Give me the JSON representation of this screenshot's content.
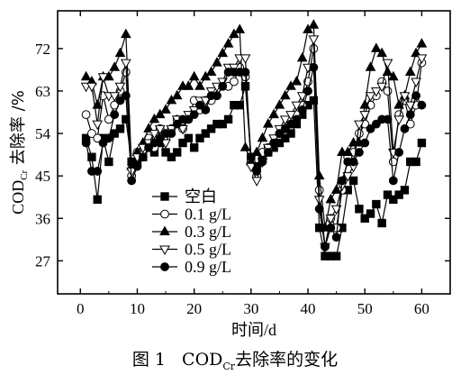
{
  "chart_data": {
    "type": "line",
    "title": "",
    "xlabel": "时间/d",
    "ylabel": {
      "main": "COD",
      "sub": "Cr",
      "rest": " 去除率 /%"
    },
    "xlim": [
      -4,
      65
    ],
    "ylim": [
      20,
      80
    ],
    "xticks": [
      "0",
      "10",
      "20",
      "30",
      "40",
      "50",
      "60"
    ],
    "yticks": [
      "27",
      "36",
      "45",
      "54",
      "63",
      "72"
    ],
    "legend_position": "bottom-center",
    "series": [
      {
        "name": "空白",
        "marker": "square",
        "fill": "#000",
        "x": [
          1,
          2,
          3,
          4,
          5,
          6,
          7,
          8,
          9,
          10,
          11,
          12,
          13,
          14,
          15,
          16,
          17,
          18,
          19,
          20,
          21,
          22,
          23,
          24,
          25,
          26,
          27,
          28,
          29,
          30,
          31,
          32,
          33,
          34,
          35,
          36,
          37,
          38,
          39,
          40,
          41,
          42,
          43,
          44,
          45,
          46,
          47,
          48,
          49,
          50,
          51,
          52,
          53,
          54,
          55,
          56,
          57,
          58,
          59,
          60
        ],
        "values": [
          53,
          49,
          40,
          53,
          48,
          54,
          55,
          57,
          48,
          48,
          49,
          51,
          50,
          52,
          50,
          49,
          50,
          52,
          53,
          51,
          53,
          54,
          55,
          56,
          56,
          57,
          60,
          60,
          64,
          49,
          47,
          49,
          50,
          51,
          52,
          53,
          54,
          56,
          58,
          60,
          61,
          34,
          28,
          28,
          28,
          34,
          42,
          44,
          38,
          36,
          37,
          39,
          35,
          41,
          40,
          41,
          42,
          48,
          48,
          52
        ]
      },
      {
        "name": "0.1 g/L",
        "marker": "circle",
        "fill": "#fff",
        "x": [
          1,
          2,
          3,
          4,
          5,
          6,
          7,
          8,
          9,
          10,
          11,
          12,
          13,
          14,
          15,
          16,
          17,
          18,
          19,
          20,
          21,
          22,
          23,
          24,
          25,
          26,
          27,
          28,
          29,
          30,
          31,
          32,
          33,
          34,
          35,
          36,
          37,
          38,
          39,
          40,
          41,
          42,
          43,
          44,
          45,
          46,
          47,
          48,
          49,
          50,
          51,
          52,
          53,
          54,
          55,
          56,
          57,
          58,
          59,
          60
        ],
        "values": [
          58,
          54,
          53,
          62,
          57,
          60,
          63,
          67,
          45,
          50,
          50,
          53,
          51,
          55,
          53,
          55,
          57,
          55,
          57,
          61,
          59,
          61,
          61,
          62,
          64,
          64,
          65,
          68,
          66,
          48,
          45,
          50,
          51,
          52,
          54,
          55,
          56,
          58,
          60,
          65,
          72,
          42,
          30,
          36,
          34,
          42,
          49,
          50,
          54,
          56,
          60,
          62,
          65,
          63,
          48,
          58,
          61,
          56,
          60,
          69
        ]
      },
      {
        "name": "0.3 g/L",
        "marker": "triangle-up",
        "fill": "#000",
        "x": [
          1,
          2,
          3,
          4,
          5,
          6,
          7,
          8,
          9,
          10,
          11,
          12,
          13,
          14,
          15,
          16,
          17,
          18,
          19,
          20,
          21,
          22,
          23,
          24,
          25,
          26,
          27,
          28,
          29,
          30,
          31,
          32,
          33,
          34,
          35,
          36,
          37,
          38,
          39,
          40,
          41,
          42,
          43,
          44,
          45,
          46,
          47,
          48,
          49,
          50,
          51,
          52,
          53,
          54,
          55,
          56,
          57,
          58,
          59,
          60
        ],
        "values": [
          66,
          65,
          60,
          66,
          66,
          68,
          71,
          75,
          47,
          50,
          52,
          55,
          57,
          58,
          59,
          61,
          62,
          64,
          64,
          66,
          64,
          66,
          67,
          69,
          71,
          73,
          75,
          76,
          51,
          48,
          50,
          53,
          56,
          58,
          60,
          62,
          64,
          65,
          70,
          76,
          77,
          45,
          34,
          40,
          42,
          50,
          50,
          52,
          52,
          60,
          68,
          72,
          71,
          67,
          66,
          60,
          62,
          67,
          71,
          73
        ]
      },
      {
        "name": "0.5 g/L",
        "marker": "triangle-down",
        "fill": "#fff",
        "x": [
          1,
          2,
          3,
          4,
          5,
          6,
          7,
          8,
          9,
          10,
          11,
          12,
          13,
          14,
          15,
          16,
          17,
          18,
          19,
          20,
          21,
          22,
          23,
          24,
          25,
          26,
          27,
          28,
          29,
          30,
          31,
          32,
          33,
          34,
          35,
          36,
          37,
          38,
          39,
          40,
          41,
          42,
          43,
          44,
          45,
          46,
          47,
          48,
          49,
          50,
          51,
          52,
          53,
          54,
          55,
          56,
          57,
          58,
          59,
          60
        ],
        "values": [
          64,
          64,
          56,
          66,
          62,
          62,
          64,
          69,
          46,
          49,
          51,
          52,
          54,
          55,
          52,
          55,
          57,
          55,
          58,
          59,
          61,
          61,
          63,
          64,
          65,
          68,
          68,
          70,
          70,
          47,
          44,
          48,
          51,
          53,
          55,
          57,
          58,
          60,
          62,
          68,
          74,
          40,
          30,
          36,
          38,
          43,
          45,
          47,
          56,
          58,
          62,
          63,
          64,
          69,
          50,
          57,
          62,
          60,
          65,
          70
        ]
      },
      {
        "name": "0.9 g/L",
        "marker": "circle",
        "fill": "#000",
        "x": [
          1,
          2,
          3,
          4,
          5,
          6,
          7,
          8,
          9,
          10,
          11,
          12,
          13,
          14,
          15,
          16,
          17,
          18,
          19,
          20,
          21,
          22,
          23,
          24,
          25,
          26,
          27,
          28,
          29,
          30,
          31,
          32,
          33,
          34,
          35,
          36,
          37,
          38,
          39,
          40,
          41,
          42,
          43,
          44,
          45,
          46,
          47,
          48,
          49,
          50,
          51,
          52,
          53,
          54,
          55,
          56,
          57,
          58,
          59,
          60
        ],
        "values": [
          52,
          46,
          46,
          52,
          53,
          58,
          61,
          62,
          44,
          47,
          49,
          51,
          52,
          53,
          54,
          54,
          56,
          57,
          57,
          58,
          60,
          59,
          62,
          62,
          64,
          67,
          67,
          67,
          67,
          49,
          46,
          48,
          50,
          52,
          54,
          55,
          56,
          57,
          59,
          63,
          68,
          38,
          30,
          34,
          32,
          44,
          48,
          48,
          50,
          52,
          55,
          56,
          57,
          57,
          44,
          50,
          55,
          58,
          62,
          60
        ]
      }
    ]
  },
  "caption": {
    "figure": "图 1",
    "main": "COD",
    "sub": "Cr",
    "rest": "去除率的变化"
  }
}
